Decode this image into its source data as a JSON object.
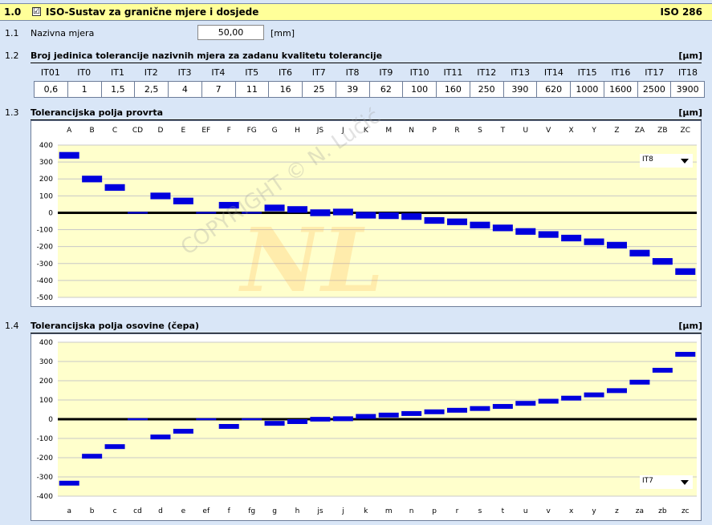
{
  "header": {
    "section": "1.0",
    "title": "ISO-Sustav za granične mjere i dosjede",
    "standard": "ISO 286",
    "checkbox": "☑"
  },
  "nominal": {
    "section": "1.1",
    "label": "Nazivna mjera",
    "value": "50,00",
    "unit": "[mm]"
  },
  "tolerance_units": {
    "section": "1.2",
    "title": "Broj jedinica tolerancije nazivnih mjera za zadanu kvalitetu tolerancije",
    "unit": "[µm]",
    "grades": [
      "IT01",
      "IT0",
      "IT1",
      "IT2",
      "IT3",
      "IT4",
      "IT5",
      "IT6",
      "IT7",
      "IT8",
      "IT9",
      "IT10",
      "IT11",
      "IT12",
      "IT13",
      "IT14",
      "IT15",
      "IT16",
      "IT17",
      "IT18"
    ],
    "values": [
      "0,6",
      "1",
      "1,5",
      "2,5",
      "4",
      "7",
      "11",
      "16",
      "25",
      "39",
      "62",
      "100",
      "160",
      "250",
      "390",
      "620",
      "1000",
      "1600",
      "2500",
      "3900"
    ]
  },
  "holes": {
    "section": "1.3",
    "title": "Tolerancijska polja provrta",
    "unit": "[µm]",
    "selected_grade": "IT8"
  },
  "shafts": {
    "section": "1.4",
    "title": "Tolerancijska polja osovine (čepa)",
    "unit": "[µm]",
    "selected_grade": "IT7"
  },
  "watermark": {
    "logo": "NL",
    "text": "COPYRIGHT © N. Lučić"
  },
  "chart_data": [
    {
      "type": "bar",
      "categories": [
        "A",
        "B",
        "C",
        "CD",
        "D",
        "E",
        "EF",
        "F",
        "FG",
        "G",
        "H",
        "JS",
        "J",
        "K",
        "M",
        "N",
        "P",
        "R",
        "S",
        "T",
        "U",
        "V",
        "X",
        "Y",
        "Z",
        "ZA",
        "ZB",
        "ZC"
      ],
      "series": [
        {
          "ranges": [
            [
              320,
              359
            ],
            [
              180,
              219
            ],
            [
              130,
              169
            ],
            [
              -5,
              5
            ],
            [
              80,
              119
            ],
            [
              50,
              89
            ],
            [
              -5,
              5
            ],
            [
              25,
              64
            ],
            [
              -5,
              5
            ],
            [
              9,
              48
            ],
            [
              0,
              39
            ],
            [
              -20,
              20
            ],
            [
              -15,
              24
            ],
            [
              -34,
              5
            ],
            [
              -37,
              2
            ],
            [
              -42,
              -3
            ],
            [
              -65,
              -26
            ],
            [
              -73,
              -34
            ],
            [
              -92,
              -53
            ],
            [
              -109,
              -70
            ],
            [
              -130,
              -91
            ],
            [
              -148,
              -109
            ],
            [
              -169,
              -130
            ],
            [
              -191,
              -152
            ],
            [
              -211,
              -172
            ],
            [
              -258,
              -219
            ],
            [
              -307,
              -268
            ],
            [
              -367,
              -328
            ]
          ]
        }
      ],
      "ylim": [
        -500,
        400
      ],
      "yticks": [
        400,
        300,
        200,
        100,
        0,
        -100,
        -200,
        -300,
        -400,
        -500
      ],
      "grid": true
    },
    {
      "type": "bar",
      "categories": [
        "a",
        "b",
        "c",
        "cd",
        "d",
        "e",
        "ef",
        "f",
        "fg",
        "g",
        "h",
        "js",
        "j",
        "k",
        "m",
        "n",
        "p",
        "r",
        "s",
        "t",
        "u",
        "v",
        "x",
        "y",
        "z",
        "za",
        "zb",
        "zc"
      ],
      "series": [
        {
          "ranges": [
            [
              -345,
              -320
            ],
            [
              -205,
              -180
            ],
            [
              -155,
              -130
            ],
            [
              -5,
              5
            ],
            [
              -105,
              -80
            ],
            [
              -75,
              -50
            ],
            [
              -5,
              5
            ],
            [
              -50,
              -25
            ],
            [
              -5,
              5
            ],
            [
              -34,
              -9
            ],
            [
              -25,
              0
            ],
            [
              -12,
              12
            ],
            [
              -10,
              15
            ],
            [
              2,
              27
            ],
            [
              9,
              34
            ],
            [
              17,
              42
            ],
            [
              26,
              51
            ],
            [
              34,
              59
            ],
            [
              43,
              68
            ],
            [
              54,
              79
            ],
            [
              70,
              95
            ],
            [
              81,
              106
            ],
            [
              97,
              122
            ],
            [
              114,
              139
            ],
            [
              136,
              161
            ],
            [
              180,
              205
            ],
            [
              242,
              267
            ],
            [
              325,
              350
            ]
          ]
        }
      ],
      "ylim": [
        -400,
        400
      ],
      "yticks": [
        400,
        300,
        200,
        100,
        0,
        -100,
        -200,
        -300,
        -400
      ],
      "grid": true
    }
  ]
}
